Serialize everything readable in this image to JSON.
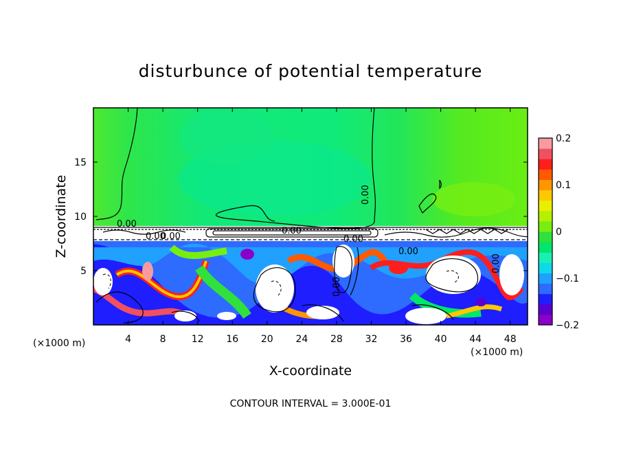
{
  "chart_data": {
    "type": "heatmap",
    "title": "disturbunce of potential temperature",
    "xlabel": "X-coordinate",
    "ylabel": "Z-coordinate",
    "x_unit": "(×1000 m)",
    "y_unit_x": "(×1000 m)",
    "xlim": [
      0,
      50
    ],
    "ylim": [
      0,
      20
    ],
    "x_ticks": [
      4,
      8,
      12,
      16,
      20,
      24,
      28,
      32,
      36,
      40,
      44,
      48
    ],
    "y_ticks": [
      5,
      10,
      15
    ],
    "colorbar": {
      "ticks": [
        "0.2",
        "0.1",
        "0",
        "−0.1",
        "−0.2"
      ],
      "range": [
        -0.2,
        0.2
      ],
      "colors": [
        "#8b00c8",
        "#5a00d0",
        "#1e1eff",
        "#2e6bff",
        "#20a0ff",
        "#10d8e8",
        "#18f0b4",
        "#00e66a",
        "#30e03c",
        "#78ee10",
        "#b4f000",
        "#e8f000",
        "#ffc800",
        "#ff9600",
        "#ff5a00",
        "#ff1e1e",
        "#f05060",
        "#f89aa0"
      ]
    },
    "contour_labels": [
      "0.00",
      "0.00",
      "0.00",
      "0.00",
      "0.00",
      "0.00",
      "0.00",
      "0.00",
      "0.00"
    ],
    "contour_interval_text": "CONTOUR INTERVAL = 3.000E-01"
  }
}
